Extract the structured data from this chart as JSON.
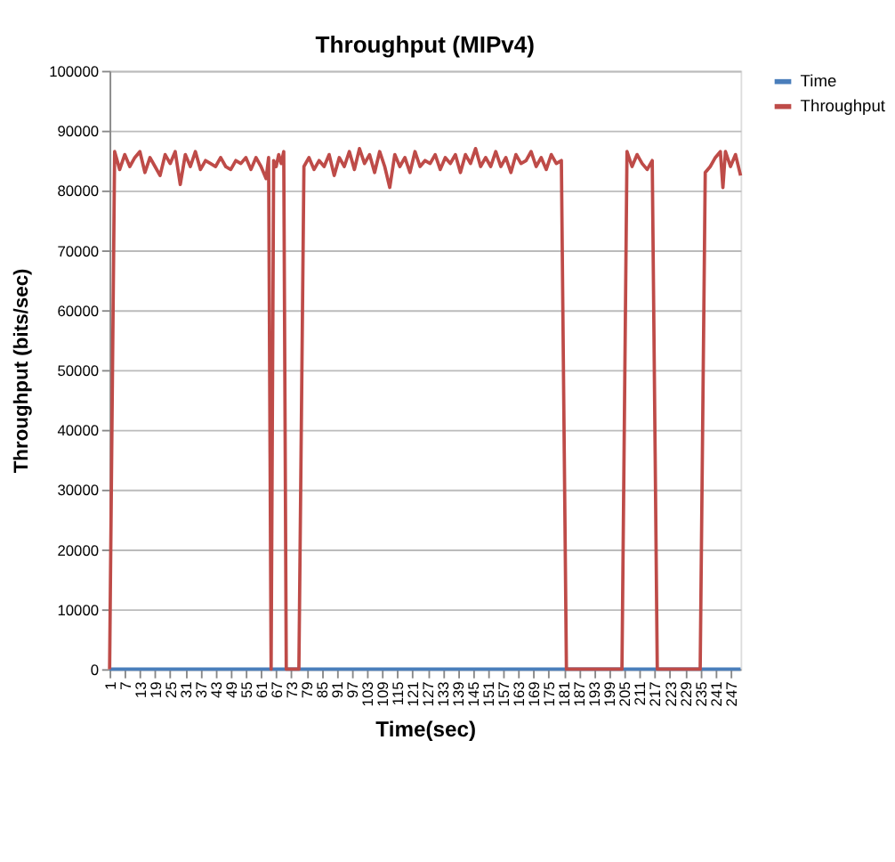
{
  "chart_data": {
    "type": "line",
    "title": "Throughput (MIPv4)",
    "xlabel": "Time(sec)",
    "ylabel": "Throughput (bits/sec)",
    "xlim": [
      1,
      251
    ],
    "xticks": [
      1,
      7,
      13,
      19,
      25,
      31,
      37,
      43,
      49,
      55,
      61,
      67,
      73,
      79,
      85,
      91,
      97,
      103,
      109,
      115,
      121,
      127,
      133,
      139,
      145,
      151,
      157,
      163,
      169,
      175,
      181,
      187,
      193,
      199,
      205,
      211,
      217,
      223,
      229,
      235,
      241,
      247
    ],
    "ylim": [
      0,
      100000
    ],
    "yticks": [
      0,
      10000,
      20000,
      30000,
      40000,
      50000,
      60000,
      70000,
      80000,
      90000,
      100000
    ],
    "grid": "y",
    "legend": "right",
    "marker": "none",
    "line_style": "solid",
    "series": [
      {
        "name": "Time",
        "color": "#4a7ebb",
        "x": [
          1,
          251
        ],
        "values": [
          0,
          0
        ]
      },
      {
        "name": "Throughput",
        "color": "#be4b48",
        "x": [
          1,
          3,
          5,
          7,
          9,
          11,
          13,
          15,
          17,
          19,
          21,
          23,
          25,
          27,
          29,
          31,
          33,
          35,
          37,
          39,
          41,
          43,
          45,
          47,
          49,
          51,
          53,
          55,
          57,
          59,
          61,
          63,
          64,
          65,
          66,
          67,
          68,
          69,
          70,
          71,
          73,
          75,
          76,
          78,
          80,
          82,
          84,
          86,
          88,
          90,
          92,
          94,
          96,
          98,
          100,
          102,
          104,
          106,
          108,
          110,
          112,
          114,
          116,
          118,
          120,
          122,
          124,
          126,
          128,
          130,
          132,
          134,
          136,
          138,
          140,
          142,
          144,
          146,
          148,
          150,
          152,
          154,
          156,
          158,
          160,
          162,
          164,
          166,
          168,
          170,
          172,
          174,
          176,
          178,
          180,
          182,
          184,
          186,
          190,
          195,
          200,
          204,
          206,
          208,
          210,
          212,
          214,
          216,
          218,
          220,
          225,
          230,
          235,
          237,
          239,
          241,
          243,
          244,
          245,
          247,
          249,
          251
        ],
        "values": [
          0,
          86500,
          83500,
          86000,
          84000,
          85500,
          86500,
          83000,
          85500,
          84000,
          82500,
          86000,
          84500,
          86500,
          81000,
          86000,
          84000,
          86500,
          83500,
          85000,
          84500,
          84000,
          85500,
          84000,
          83500,
          85000,
          84500,
          85500,
          83500,
          85500,
          84000,
          82000,
          85500,
          0,
          85000,
          84000,
          86000,
          84500,
          86500,
          0,
          0,
          0,
          0,
          84000,
          85500,
          83500,
          85000,
          84000,
          86000,
          82500,
          85500,
          84000,
          86500,
          83500,
          87000,
          84500,
          86000,
          83000,
          86500,
          84000,
          80500,
          86000,
          84000,
          85500,
          83000,
          86500,
          84000,
          85000,
          84500,
          86000,
          83500,
          85500,
          84500,
          86000,
          83000,
          86000,
          84500,
          87000,
          84000,
          85500,
          84000,
          86500,
          84000,
          85500,
          83000,
          86000,
          84500,
          85000,
          86500,
          84000,
          85500,
          83500,
          86000,
          84500,
          85000,
          0,
          0,
          0,
          0,
          0,
          0,
          0,
          86500,
          84000,
          86000,
          84500,
          83500,
          85000,
          0,
          0,
          0,
          0,
          0,
          83000,
          84000,
          85500,
          86500,
          80500,
          86500,
          84000,
          86000,
          82500
        ]
      }
    ]
  }
}
